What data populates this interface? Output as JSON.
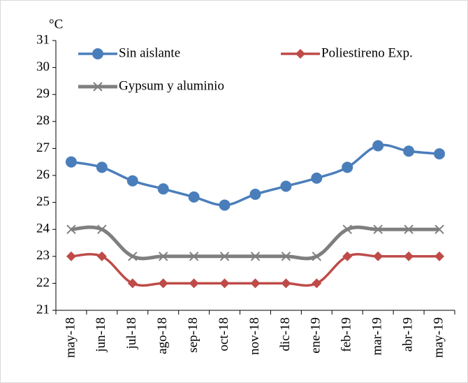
{
  "chart_data": {
    "type": "line",
    "y_label": "°C",
    "categories": [
      "may-18",
      "jun-18",
      "jul-18",
      "ago-18",
      "sep-18",
      "oct-18",
      "nov-18",
      "dic-18",
      "ene-19",
      "feb-19",
      "mar-19",
      "abr-19",
      "may-19"
    ],
    "series": [
      {
        "name": "Sin aislante",
        "color": "#4a7ebb",
        "marker": "circle",
        "values": [
          26.5,
          26.3,
          25.8,
          25.5,
          25.2,
          24.9,
          25.3,
          25.6,
          25.9,
          26.3,
          27.1,
          26.9,
          26.8
        ]
      },
      {
        "name": "Poliestireno Exp.",
        "color": "#be4b48",
        "marker": "diamond",
        "values": [
          23,
          23,
          22,
          22,
          22,
          22,
          22,
          22,
          22,
          23,
          23,
          23,
          23
        ]
      },
      {
        "name": "Gypsum y aluminio",
        "color": "#7f7f7f",
        "marker": "x",
        "values": [
          24,
          24,
          23,
          23,
          23,
          23,
          23,
          23,
          23,
          24,
          24,
          24,
          24
        ]
      }
    ],
    "ylim": [
      21,
      31
    ],
    "yticks": [
      21,
      22,
      23,
      24,
      25,
      26,
      27,
      28,
      29,
      30,
      31
    ],
    "grid": false
  }
}
